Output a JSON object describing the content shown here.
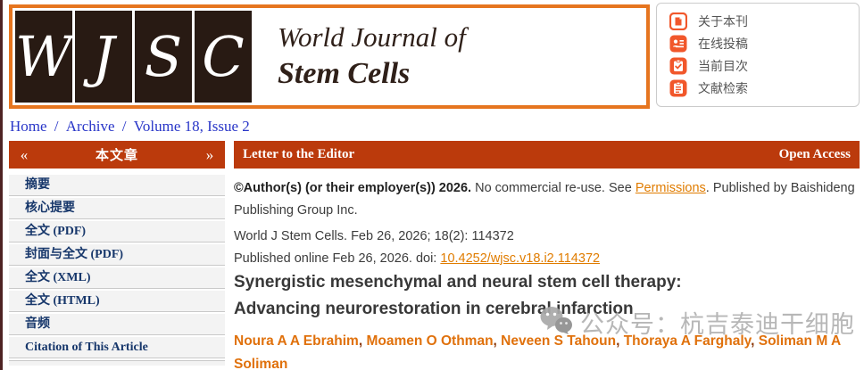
{
  "logo": {
    "letters": [
      "W",
      "J",
      "S",
      "C"
    ],
    "title_line1": "World Journal of",
    "title_line2": "Stem Cells"
  },
  "quick_menu": {
    "items": [
      {
        "name": "about-journal",
        "label": "关于本刊",
        "icon": "journal-about-icon"
      },
      {
        "name": "online-submission",
        "label": "在线投稿",
        "icon": "online-submission-icon"
      },
      {
        "name": "current-issue",
        "label": "当前目次",
        "icon": "current-issue-icon"
      },
      {
        "name": "literature-search",
        "label": "文献检索",
        "icon": "literature-search-icon"
      }
    ]
  },
  "breadcrumb": {
    "separator": "/",
    "items": [
      {
        "name": "home",
        "label": "Home"
      },
      {
        "name": "archive",
        "label": "Archive"
      },
      {
        "name": "volume-issue",
        "label": "Volume 18, Issue 2"
      }
    ]
  },
  "sidebar": {
    "header": {
      "title": "本文章",
      "left_arrow": "«",
      "right_arrow": "»"
    },
    "items": [
      {
        "name": "abstract",
        "label": "摘要"
      },
      {
        "name": "core-tips",
        "label": "核心提要"
      },
      {
        "name": "full-text-pdf",
        "label": "全文 (PDF)"
      },
      {
        "name": "cover-full-text-pdf",
        "label": "封面与全文 (PDF)"
      },
      {
        "name": "full-text-xml",
        "label": "全文 (XML)"
      },
      {
        "name": "full-text-html",
        "label": "全文 (HTML)"
      },
      {
        "name": "audio",
        "label": "音频"
      },
      {
        "name": "citation",
        "label": "Citation of This Article"
      }
    ]
  },
  "article": {
    "banner": {
      "type": "Letter to the Editor",
      "access": "Open Access"
    },
    "copyright": {
      "bold": "©Author(s) (or their employer(s)) 2026.",
      "before_link": " No commercial re-use. See ",
      "link": "Permissions",
      "after_link": ". Published by Baishideng Publishing Group Inc."
    },
    "citation_line1": "World J Stem Cells. Feb 26, 2026; 18(2): 114372",
    "citation_line2_prefix": "Published online Feb 26, 2026. doi: ",
    "doi_link": "10.4252/wjsc.v18.i2.114372",
    "title_lines": [
      "Synergistic mesenchymal and neural stem cell therapy:",
      "Advancing neurorestoration in cerebral infarction"
    ],
    "authors": [
      "Noura A A Ebrahim",
      "Moamen O Othman",
      "Neveen S Tahoun",
      "Thoraya A Farghaly",
      "Soliman M A Soliman"
    ]
  },
  "watermark": {
    "icon": "wechat-icon",
    "text": "公众号：杭吉泰迪干细胞"
  },
  "colors": {
    "bar_orange": "#bb3a0c",
    "logo_border_orange": "#e6751f",
    "logo_box_dark": "#281a13",
    "icon_orange": "#f1572b",
    "sidebar_navy": "#17376b",
    "breadcrumb_blue": "#2936c8",
    "link_orange": "#e07c00",
    "author_orange": "#e0710c",
    "comma_maroon": "#8c3a0b",
    "watermark_gray": "#b1b1b1",
    "left_strip_maroon": "#4e2323"
  }
}
